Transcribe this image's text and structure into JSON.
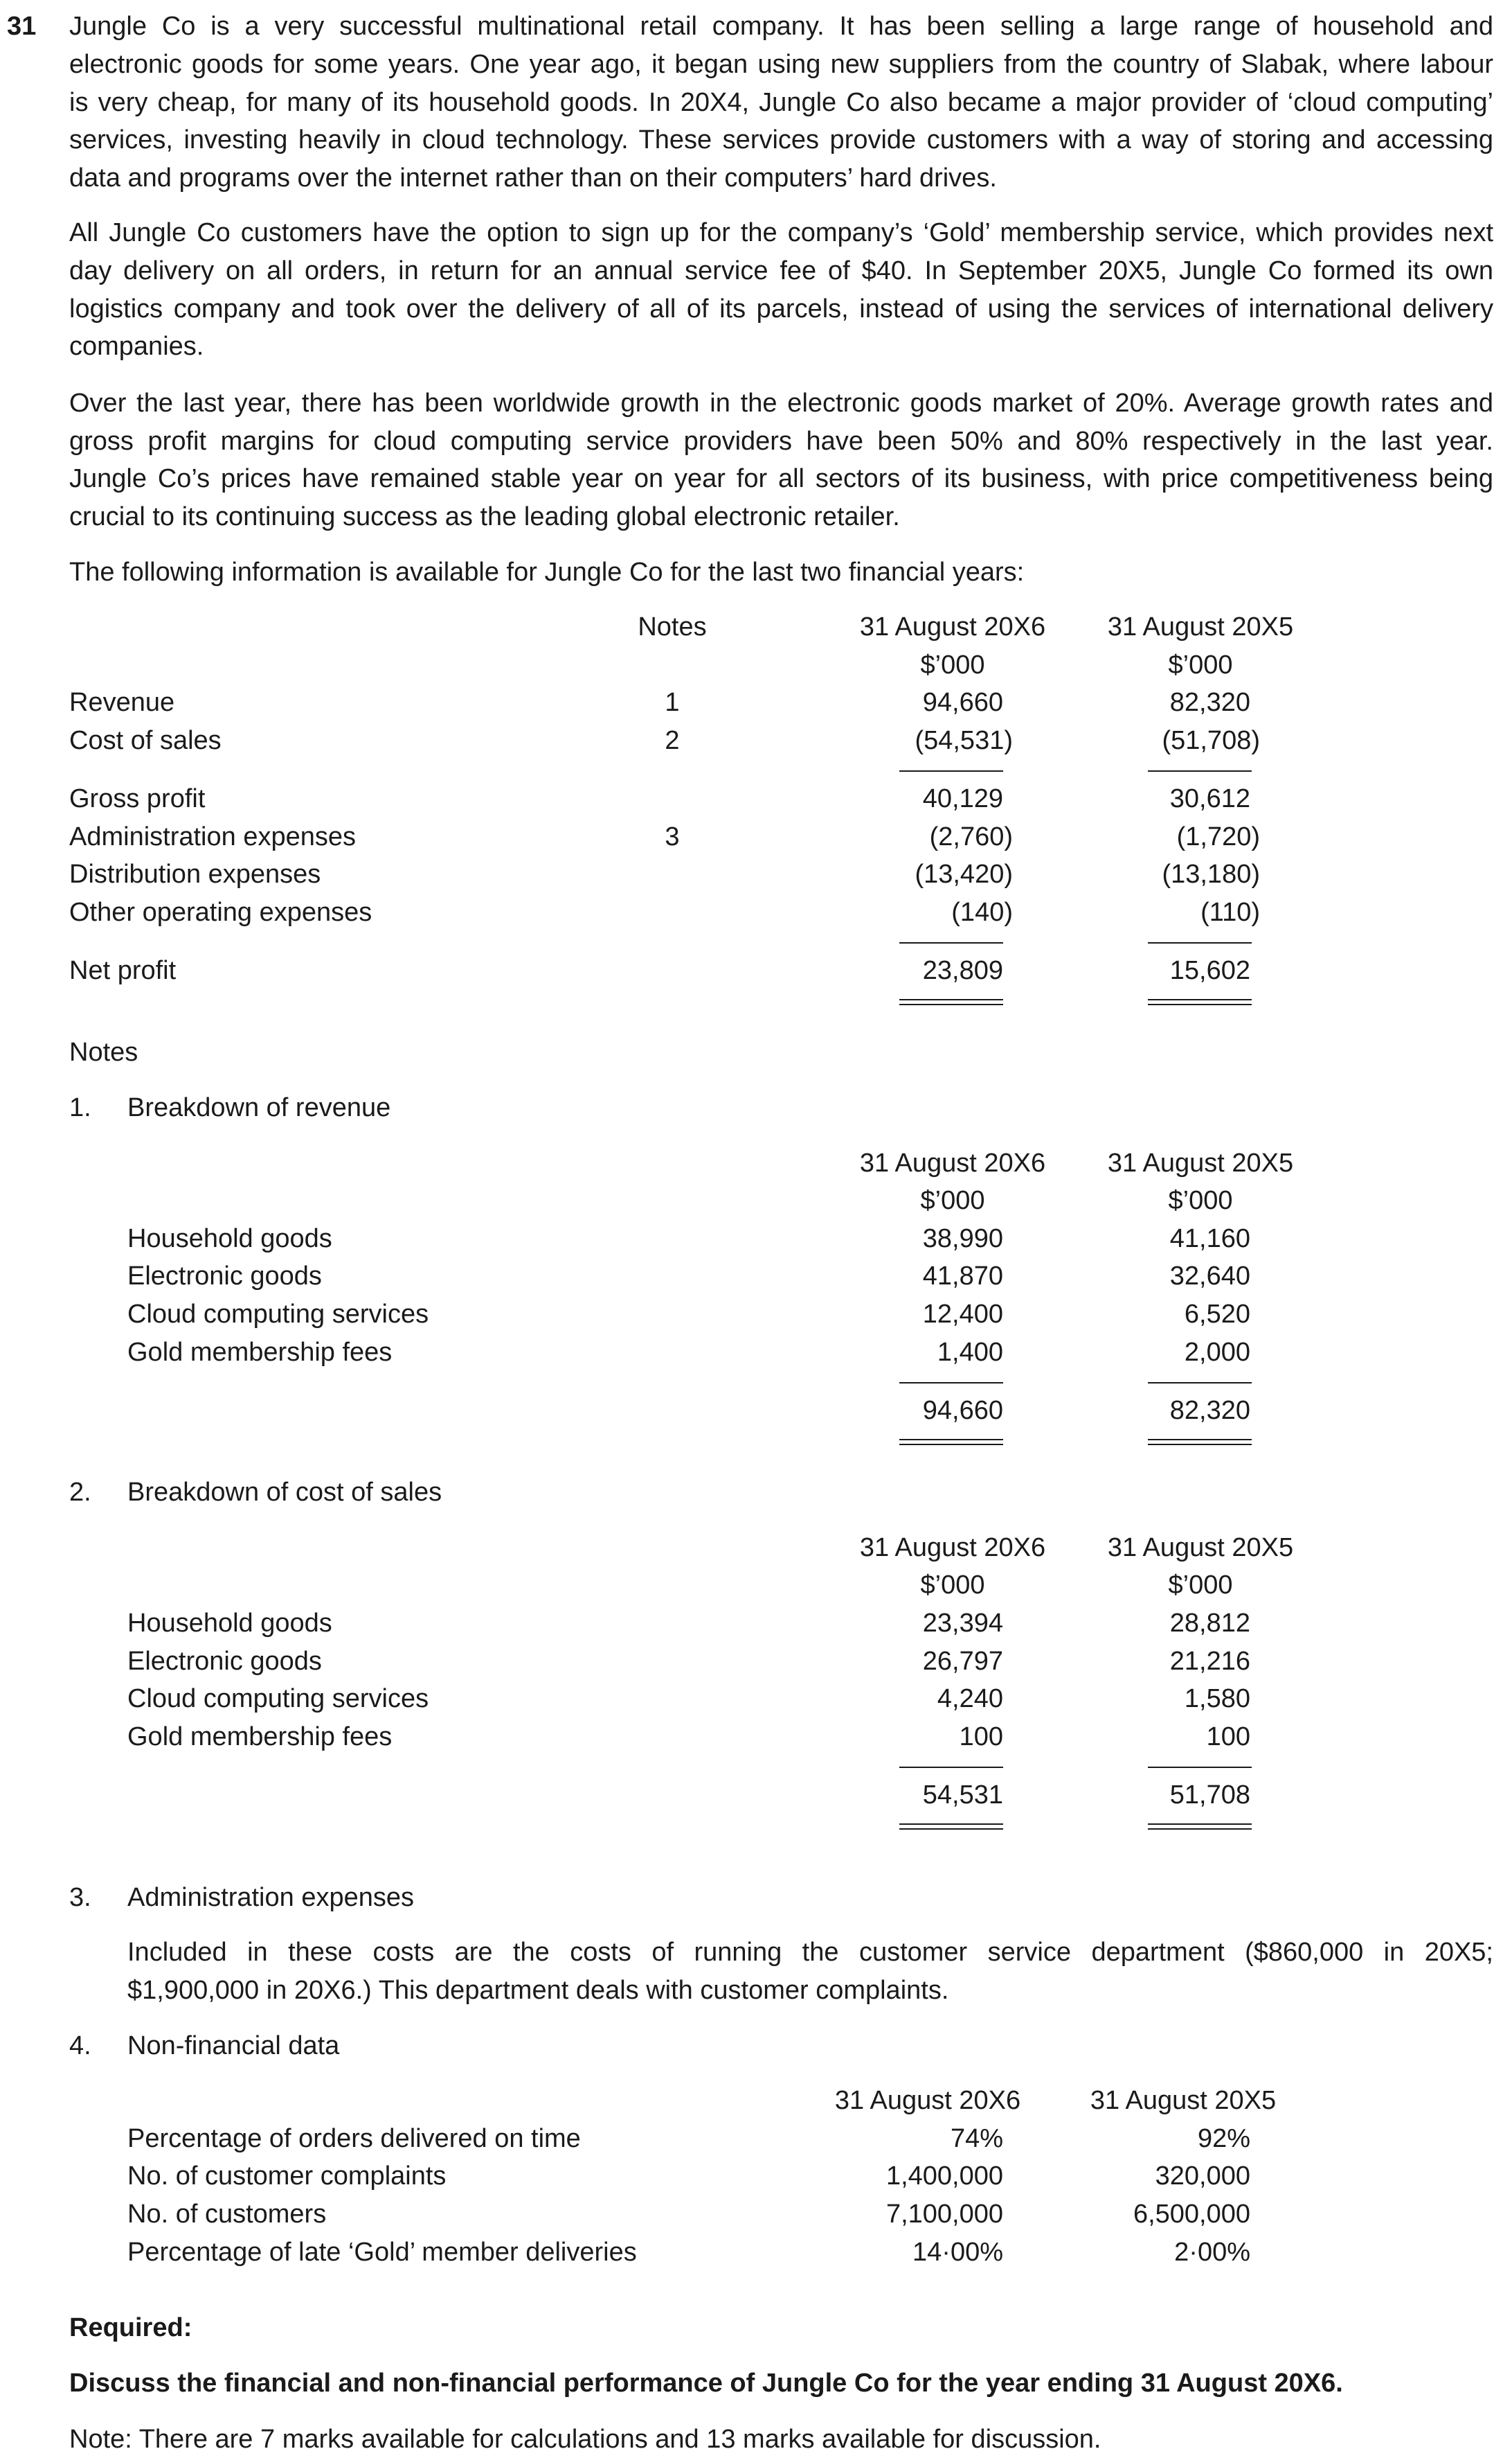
{
  "question_number": "31",
  "paragraphs": [
    [
      "Jungle Co is a very successful multinational retail company. It has been selling a large range of household and",
      "electronic goods for some years. One year ago, it began using new suppliers from the country of Slabak, where labour",
      "is very cheap, for many of its household goods. In 20X4, Jungle Co also became a major provider of ‘cloud computing’",
      "services, investing heavily in cloud technology. These services provide customers with a way of storing and accessing",
      "data and programs over the internet rather than on their computers’ hard drives."
    ],
    [
      "All Jungle Co customers have the option to sign up for the company’s ‘Gold’ membership service, which provides next",
      "day delivery on all orders, in return for an annual service fee of $40. In September 20X5, Jungle Co formed its own",
      "logistics company and took over the delivery of all of its parcels, instead of using the services of international delivery",
      "companies."
    ],
    [
      "Over the last year, there has been worldwide growth in the electronic goods market of 20%. Average growth rates and",
      "gross profit margins for cloud computing service providers have been 50% and 80% respectively in the last year.",
      "Jungle Co’s prices have remained stable year on year for all sectors of its business, with price competitiveness being",
      "crucial to its continuing success as the leading global electronic retailer."
    ],
    [
      "The following information is available for Jungle Co for the last two financial years:"
    ]
  ],
  "income_statement": {
    "notes_header": "Notes",
    "col_headers": [
      "31 August 20X6",
      "31 August 20X5"
    ],
    "unit": "$’000",
    "rows": [
      {
        "label": "Revenue",
        "note": "1",
        "v": [
          "94,660",
          "82,320"
        ]
      },
      {
        "label": "Cost of sales",
        "note": "2",
        "v": [
          "(54,531)",
          "(51,708)"
        ]
      },
      {
        "label": "Gross profit",
        "note": "",
        "v": [
          "40,129",
          "30,612"
        ]
      },
      {
        "label": "Administration expenses",
        "note": "3",
        "v": [
          "(2,760)",
          "(1,720)"
        ]
      },
      {
        "label": "Distribution expenses",
        "note": "",
        "v": [
          "(13,420)",
          "(13,180)"
        ]
      },
      {
        "label": "Other operating expenses",
        "note": "",
        "v": [
          "(140)",
          "(110)"
        ]
      },
      {
        "label": "Net profit",
        "note": "",
        "v": [
          "23,809",
          "15,602"
        ]
      }
    ]
  },
  "notes_title": "Notes",
  "note1": {
    "number": "1.",
    "title": "Breakdown of revenue",
    "col_headers": [
      "31 August 20X6",
      "31 August 20X5"
    ],
    "unit": "$’000",
    "rows": [
      {
        "label": "Household goods",
        "v": [
          "38,990",
          "41,160"
        ]
      },
      {
        "label": "Electronic goods",
        "v": [
          "41,870",
          "32,640"
        ]
      },
      {
        "label": "Cloud computing services",
        "v": [
          "12,400",
          "6,520"
        ]
      },
      {
        "label": "Gold membership fees",
        "v": [
          "1,400",
          "2,000"
        ]
      }
    ],
    "total": [
      "94,660",
      "82,320"
    ]
  },
  "note2": {
    "number": "2.",
    "title": "Breakdown of cost of sales",
    "col_headers": [
      "31 August 20X6",
      "31 August 20X5"
    ],
    "unit": "$’000",
    "rows": [
      {
        "label": "Household goods",
        "v": [
          "23,394",
          "28,812"
        ]
      },
      {
        "label": "Electronic goods",
        "v": [
          "26,797",
          "21,216"
        ]
      },
      {
        "label": "Cloud computing services",
        "v": [
          "4,240",
          "1,580"
        ]
      },
      {
        "label": "Gold membership fees",
        "v": [
          "100",
          "100"
        ]
      }
    ],
    "total": [
      "54,531",
      "51,708"
    ]
  },
  "note3": {
    "number": "3.",
    "title": "Administration expenses",
    "lines": [
      "Included in these costs are the costs of running the customer service department ($860,000 in 20X5;",
      "$1,900,000 in 20X6.) This department deals with customer complaints."
    ]
  },
  "note4": {
    "number": "4.",
    "title": "Non-financial data",
    "col_headers": [
      "31 August 20X6",
      "31 August 20X5"
    ],
    "rows": [
      {
        "label": "Percentage of orders delivered on time",
        "v": [
          "74%",
          "92%"
        ]
      },
      {
        "label": "No. of customer complaints",
        "v": [
          "1,400,000",
          "320,000"
        ]
      },
      {
        "label": "No. of customers",
        "v": [
          "7,100,000",
          "6,500,000"
        ]
      },
      {
        "label": "Percentage of late ‘Gold’ member deliveries",
        "v": [
          "14·00%",
          "2·00%"
        ]
      }
    ]
  },
  "required": {
    "heading": "Required:",
    "task": "Discuss the financial and non-financial performance of Jungle Co for the year ending 31 August 20X6.",
    "note": "Note: There are 7 marks available for calculations and 13 marks available for discussion."
  }
}
